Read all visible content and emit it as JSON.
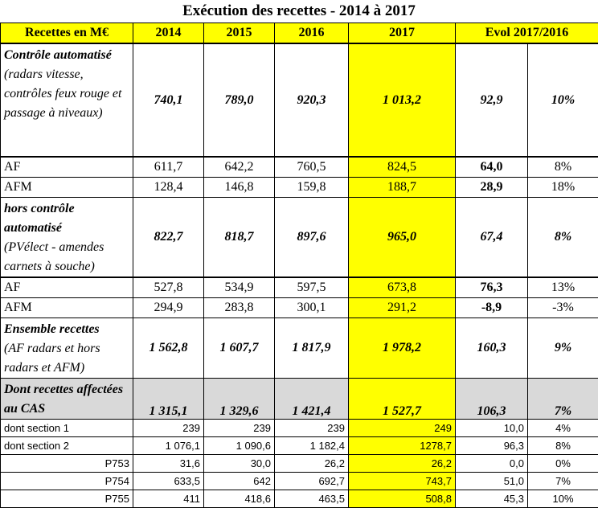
{
  "title": "Exécution des recettes - 2014 à 2017",
  "headers": [
    "Recettes en M€",
    "2014",
    "2015",
    "2016",
    "2017",
    "Evol 2017/2016"
  ],
  "rows": [
    {
      "label": "Contrôle automatisé",
      "sublabel": "(radars vitesse, contrôles feux rouge et passage à niveaux)",
      "values": [
        "740,1",
        "789,0",
        "920,3",
        "1 013,2",
        "92,9",
        "10%"
      ]
    },
    {
      "label": "AF",
      "values": [
        "611,7",
        "642,2",
        "760,5",
        "824,5",
        "64,0",
        "8%"
      ]
    },
    {
      "label": "AFM",
      "values": [
        "128,4",
        "146,8",
        "159,8",
        "188,7",
        "28,9",
        "18%"
      ]
    },
    {
      "label": "hors contrôle automatisé",
      "sublabel": "(PVélect - amendes carnets à souche)",
      "values": [
        "822,7",
        "818,7",
        "897,6",
        "965,0",
        "67,4",
        "8%"
      ]
    },
    {
      "label": "AF",
      "values": [
        "527,8",
        "534,9",
        "597,5",
        "673,8",
        "76,3",
        "13%"
      ]
    },
    {
      "label": "AFM",
      "values": [
        "294,9",
        "283,8",
        "300,1",
        "291,2",
        "-8,9",
        "-3%"
      ]
    },
    {
      "label": "Ensemble recettes",
      "sublabel": "(AF radars et hors radars et AFM)",
      "values": [
        "1 562,8",
        "1 607,7",
        "1 817,9",
        "1 978,2",
        "160,3",
        "9%"
      ]
    },
    {
      "label": "Dont recettes affectées au CAS",
      "values": [
        "1 315,1",
        "1 329,6",
        "1 421,4",
        "1 527,7",
        "106,3",
        "7%"
      ]
    },
    {
      "label": "dont section 1",
      "values": [
        "239",
        "239",
        "239",
        "249",
        "10,0",
        "4%"
      ]
    },
    {
      "label": "dont section 2",
      "values": [
        "1 076,1",
        "1 090,6",
        "1 182,4",
        "1278,7",
        "96,3",
        "8%"
      ]
    },
    {
      "label": "P753",
      "values": [
        "31,6",
        "30,0",
        "26,2",
        "26,2",
        "0,0",
        "0%"
      ]
    },
    {
      "label": "P754",
      "values": [
        "633,5",
        "642",
        "692,7",
        "743,7",
        "51,0",
        "7%"
      ]
    },
    {
      "label": "P755",
      "values": [
        "411",
        "418,6",
        "463,5",
        "508,8",
        "45,3",
        "10%"
      ]
    }
  ]
}
